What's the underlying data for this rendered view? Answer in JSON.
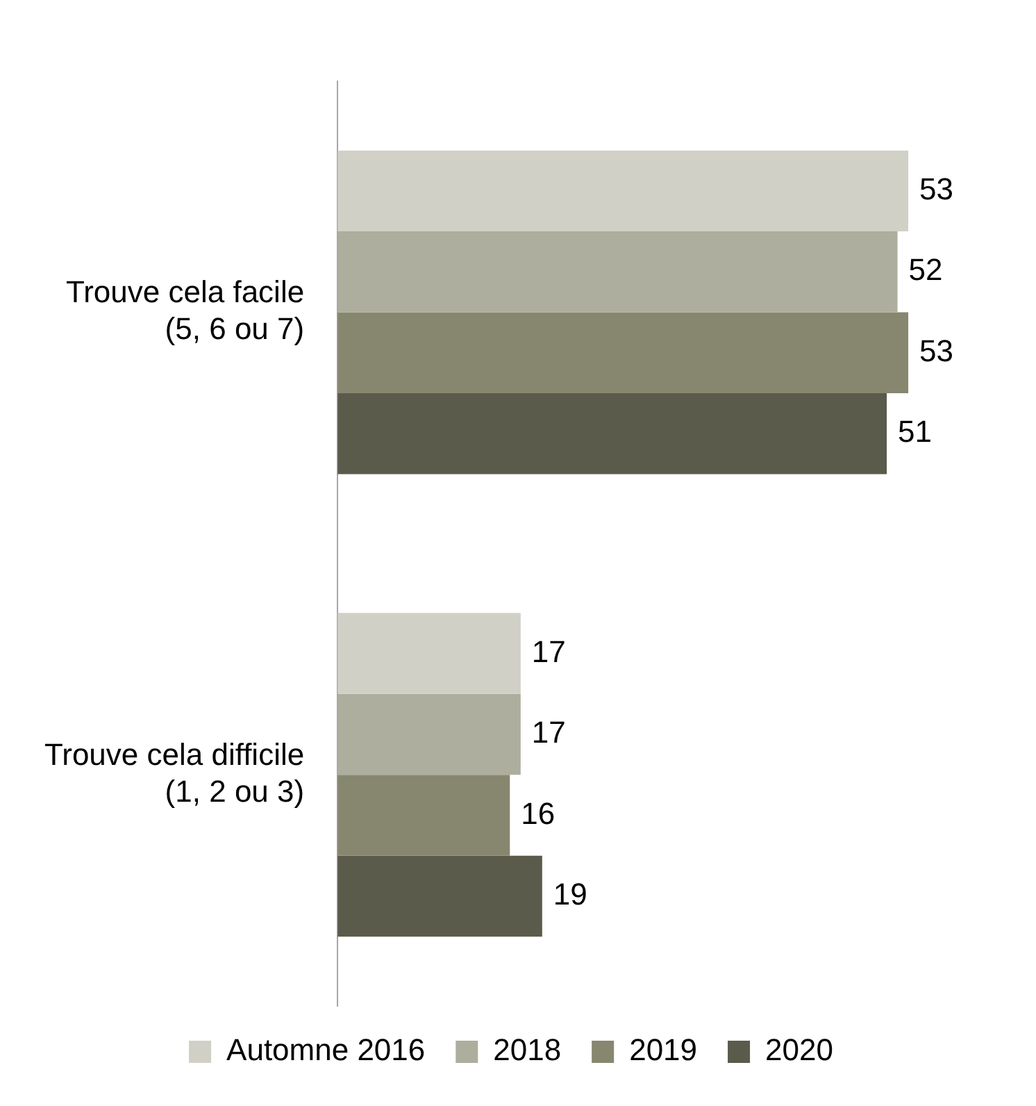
{
  "chart_data": {
    "type": "bar",
    "orientation": "horizontal",
    "categories": [
      "Trouve cela facile\n(5, 6 ou 7)",
      "Trouve cela difficile\n(1, 2 ou 3)"
    ],
    "series": [
      {
        "name": "Automne 2016",
        "color": "#d0d0c6",
        "values": [
          53,
          17
        ]
      },
      {
        "name": "2018",
        "color": "#adae9d",
        "values": [
          52,
          17
        ]
      },
      {
        "name": "2019",
        "color": "#878770",
        "values": [
          53,
          16
        ]
      },
      {
        "name": "2020",
        "color": "#5a5b4b",
        "values": [
          51,
          19
        ]
      }
    ],
    "data_labels": true,
    "legend": "bottom"
  }
}
